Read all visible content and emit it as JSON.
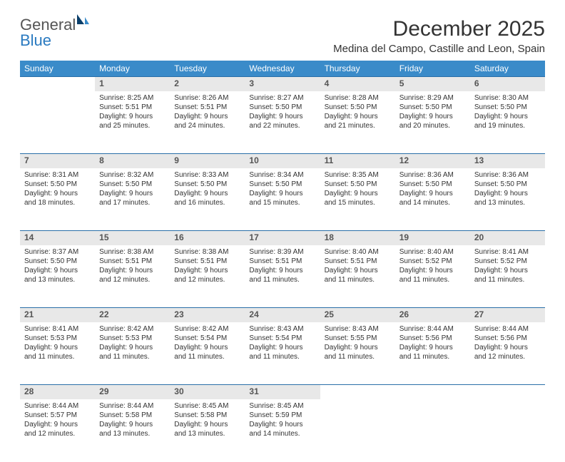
{
  "logo": {
    "text1": "General",
    "text2": "Blue"
  },
  "title": "December 2025",
  "location": "Medina del Campo, Castille and Leon, Spain",
  "colors": {
    "header_bg": "#3a8bc9",
    "header_text": "#ffffff",
    "row_divider": "#2a6fa8",
    "daynum_bg": "#e8e8e8",
    "daynum_text": "#555555",
    "body_text": "#333333",
    "logo_grey": "#555555",
    "logo_blue": "#2a7ac0",
    "sail_dark": "#0a3f6b",
    "sail_light": "#3a8bc9"
  },
  "weekdays": [
    "Sunday",
    "Monday",
    "Tuesday",
    "Wednesday",
    "Thursday",
    "Friday",
    "Saturday"
  ],
  "weeks": [
    [
      null,
      {
        "n": "1",
        "sr": "Sunrise: 8:25 AM",
        "ss": "Sunset: 5:51 PM",
        "d1": "Daylight: 9 hours",
        "d2": "and 25 minutes."
      },
      {
        "n": "2",
        "sr": "Sunrise: 8:26 AM",
        "ss": "Sunset: 5:51 PM",
        "d1": "Daylight: 9 hours",
        "d2": "and 24 minutes."
      },
      {
        "n": "3",
        "sr": "Sunrise: 8:27 AM",
        "ss": "Sunset: 5:50 PM",
        "d1": "Daylight: 9 hours",
        "d2": "and 22 minutes."
      },
      {
        "n": "4",
        "sr": "Sunrise: 8:28 AM",
        "ss": "Sunset: 5:50 PM",
        "d1": "Daylight: 9 hours",
        "d2": "and 21 minutes."
      },
      {
        "n": "5",
        "sr": "Sunrise: 8:29 AM",
        "ss": "Sunset: 5:50 PM",
        "d1": "Daylight: 9 hours",
        "d2": "and 20 minutes."
      },
      {
        "n": "6",
        "sr": "Sunrise: 8:30 AM",
        "ss": "Sunset: 5:50 PM",
        "d1": "Daylight: 9 hours",
        "d2": "and 19 minutes."
      }
    ],
    [
      {
        "n": "7",
        "sr": "Sunrise: 8:31 AM",
        "ss": "Sunset: 5:50 PM",
        "d1": "Daylight: 9 hours",
        "d2": "and 18 minutes."
      },
      {
        "n": "8",
        "sr": "Sunrise: 8:32 AM",
        "ss": "Sunset: 5:50 PM",
        "d1": "Daylight: 9 hours",
        "d2": "and 17 minutes."
      },
      {
        "n": "9",
        "sr": "Sunrise: 8:33 AM",
        "ss": "Sunset: 5:50 PM",
        "d1": "Daylight: 9 hours",
        "d2": "and 16 minutes."
      },
      {
        "n": "10",
        "sr": "Sunrise: 8:34 AM",
        "ss": "Sunset: 5:50 PM",
        "d1": "Daylight: 9 hours",
        "d2": "and 15 minutes."
      },
      {
        "n": "11",
        "sr": "Sunrise: 8:35 AM",
        "ss": "Sunset: 5:50 PM",
        "d1": "Daylight: 9 hours",
        "d2": "and 15 minutes."
      },
      {
        "n": "12",
        "sr": "Sunrise: 8:36 AM",
        "ss": "Sunset: 5:50 PM",
        "d1": "Daylight: 9 hours",
        "d2": "and 14 minutes."
      },
      {
        "n": "13",
        "sr": "Sunrise: 8:36 AM",
        "ss": "Sunset: 5:50 PM",
        "d1": "Daylight: 9 hours",
        "d2": "and 13 minutes."
      }
    ],
    [
      {
        "n": "14",
        "sr": "Sunrise: 8:37 AM",
        "ss": "Sunset: 5:50 PM",
        "d1": "Daylight: 9 hours",
        "d2": "and 13 minutes."
      },
      {
        "n": "15",
        "sr": "Sunrise: 8:38 AM",
        "ss": "Sunset: 5:51 PM",
        "d1": "Daylight: 9 hours",
        "d2": "and 12 minutes."
      },
      {
        "n": "16",
        "sr": "Sunrise: 8:38 AM",
        "ss": "Sunset: 5:51 PM",
        "d1": "Daylight: 9 hours",
        "d2": "and 12 minutes."
      },
      {
        "n": "17",
        "sr": "Sunrise: 8:39 AM",
        "ss": "Sunset: 5:51 PM",
        "d1": "Daylight: 9 hours",
        "d2": "and 11 minutes."
      },
      {
        "n": "18",
        "sr": "Sunrise: 8:40 AM",
        "ss": "Sunset: 5:51 PM",
        "d1": "Daylight: 9 hours",
        "d2": "and 11 minutes."
      },
      {
        "n": "19",
        "sr": "Sunrise: 8:40 AM",
        "ss": "Sunset: 5:52 PM",
        "d1": "Daylight: 9 hours",
        "d2": "and 11 minutes."
      },
      {
        "n": "20",
        "sr": "Sunrise: 8:41 AM",
        "ss": "Sunset: 5:52 PM",
        "d1": "Daylight: 9 hours",
        "d2": "and 11 minutes."
      }
    ],
    [
      {
        "n": "21",
        "sr": "Sunrise: 8:41 AM",
        "ss": "Sunset: 5:53 PM",
        "d1": "Daylight: 9 hours",
        "d2": "and 11 minutes."
      },
      {
        "n": "22",
        "sr": "Sunrise: 8:42 AM",
        "ss": "Sunset: 5:53 PM",
        "d1": "Daylight: 9 hours",
        "d2": "and 11 minutes."
      },
      {
        "n": "23",
        "sr": "Sunrise: 8:42 AM",
        "ss": "Sunset: 5:54 PM",
        "d1": "Daylight: 9 hours",
        "d2": "and 11 minutes."
      },
      {
        "n": "24",
        "sr": "Sunrise: 8:43 AM",
        "ss": "Sunset: 5:54 PM",
        "d1": "Daylight: 9 hours",
        "d2": "and 11 minutes."
      },
      {
        "n": "25",
        "sr": "Sunrise: 8:43 AM",
        "ss": "Sunset: 5:55 PM",
        "d1": "Daylight: 9 hours",
        "d2": "and 11 minutes."
      },
      {
        "n": "26",
        "sr": "Sunrise: 8:44 AM",
        "ss": "Sunset: 5:56 PM",
        "d1": "Daylight: 9 hours",
        "d2": "and 11 minutes."
      },
      {
        "n": "27",
        "sr": "Sunrise: 8:44 AM",
        "ss": "Sunset: 5:56 PM",
        "d1": "Daylight: 9 hours",
        "d2": "and 12 minutes."
      }
    ],
    [
      {
        "n": "28",
        "sr": "Sunrise: 8:44 AM",
        "ss": "Sunset: 5:57 PM",
        "d1": "Daylight: 9 hours",
        "d2": "and 12 minutes."
      },
      {
        "n": "29",
        "sr": "Sunrise: 8:44 AM",
        "ss": "Sunset: 5:58 PM",
        "d1": "Daylight: 9 hours",
        "d2": "and 13 minutes."
      },
      {
        "n": "30",
        "sr": "Sunrise: 8:45 AM",
        "ss": "Sunset: 5:58 PM",
        "d1": "Daylight: 9 hours",
        "d2": "and 13 minutes."
      },
      {
        "n": "31",
        "sr": "Sunrise: 8:45 AM",
        "ss": "Sunset: 5:59 PM",
        "d1": "Daylight: 9 hours",
        "d2": "and 14 minutes."
      },
      null,
      null,
      null
    ]
  ]
}
